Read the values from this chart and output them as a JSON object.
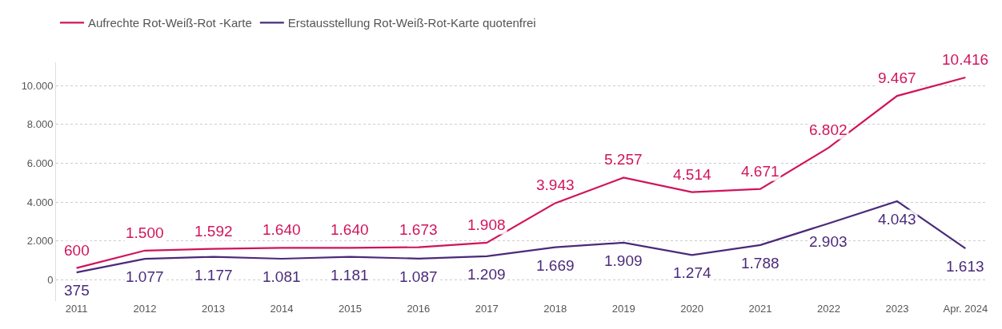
{
  "chart_data": {
    "type": "line",
    "categories": [
      "2011",
      "2012",
      "2013",
      "2014",
      "2015",
      "2016",
      "2017",
      "2018",
      "2019",
      "2020",
      "2021",
      "2022",
      "2023",
      "Apr. 2024"
    ],
    "series": [
      {
        "name": "Aufrechte Rot-Weiß-Rot -Karte",
        "color": "#d0145a",
        "values": [
          600,
          1500,
          1592,
          1640,
          1640,
          1673,
          1908,
          3943,
          5257,
          4514,
          4671,
          6802,
          9467,
          10416
        ],
        "value_labels": [
          "600",
          "1.500",
          "1.592",
          "1.640",
          "1.640",
          "1.673",
          "1.908",
          "3.943",
          "5.257",
          "4.514",
          "4.671",
          "6.802",
          "9.467",
          "10.416"
        ]
      },
      {
        "name": "Erstausstellung Rot-Weiß-Rot-Karte quotenfrei",
        "color": "#4a2a7a",
        "values": [
          375,
          1077,
          1177,
          1081,
          1181,
          1087,
          1209,
          1669,
          1909,
          1274,
          1788,
          2903,
          4043,
          1613
        ],
        "value_labels": [
          "375",
          "1.077",
          "1.177",
          "1.081",
          "1.181",
          "1.087",
          "1.209",
          "1.669",
          "1.909",
          "1.274",
          "1.788",
          "2.903",
          "4.043",
          "1.613"
        ]
      }
    ],
    "ylim": [
      -1100,
      11200
    ],
    "yticks": [
      {
        "value": 0,
        "label": "0"
      },
      {
        "value": 2000,
        "label": "2.000"
      },
      {
        "value": 4000,
        "label": "4.000"
      },
      {
        "value": 6000,
        "label": "6.000"
      },
      {
        "value": 8000,
        "label": "8.000"
      },
      {
        "value": 10000,
        "label": "10.000"
      }
    ],
    "grid": "y",
    "legend": "top left",
    "marker": "none",
    "line_style": "solid"
  }
}
